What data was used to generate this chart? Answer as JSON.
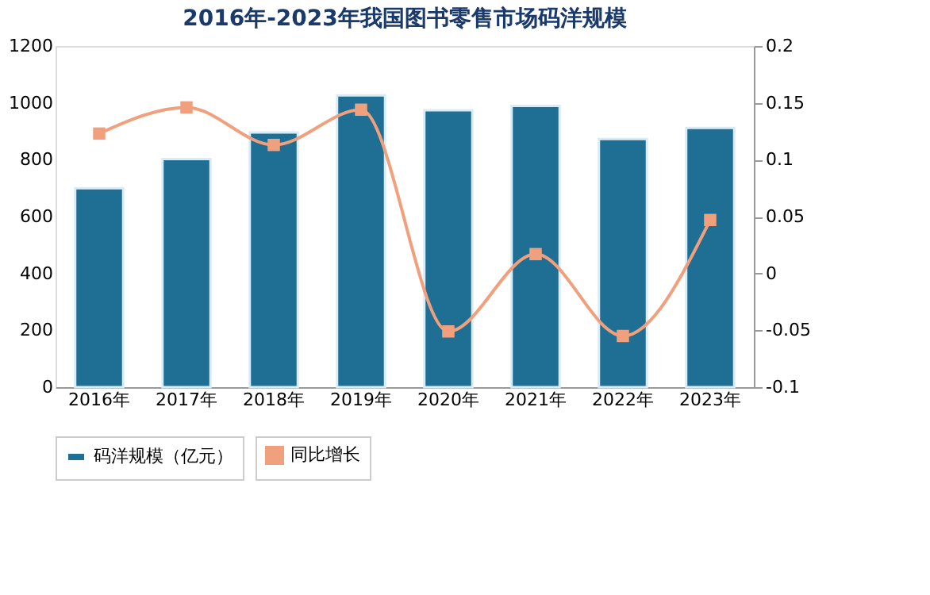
{
  "chart_data": {
    "type": "bar",
    "title": "2016年-2023年我国图书零售市场码洋规模",
    "categories": [
      "2016年",
      "2017年",
      "2018年",
      "2019年",
      "2020年",
      "2021年",
      "2022年",
      "2023年"
    ],
    "series": [
      {
        "name": "码洋规模（亿元）",
        "color": "#1f6e94",
        "values": [
          700,
          802,
          896,
          1026,
          974,
          989,
          873,
          912
        ]
      },
      {
        "name": "同比增长",
        "type": "line",
        "axis": "y2",
        "color": "#f0a07c",
        "marker": "square",
        "values": [
          0.123,
          0.146,
          0.113,
          0.144,
          -0.051,
          0.017,
          -0.055,
          0.047
        ]
      }
    ],
    "ylim": [
      0,
      1200
    ],
    "yticks": [
      0,
      200,
      400,
      600,
      800,
      1000,
      1200
    ],
    "y2lim": [
      -0.1,
      0.2
    ],
    "y2ticks": [
      -0.1,
      -0.05,
      0,
      0.05,
      0.1,
      0.15,
      0.2
    ],
    "legend": "bottom",
    "grid": false
  }
}
